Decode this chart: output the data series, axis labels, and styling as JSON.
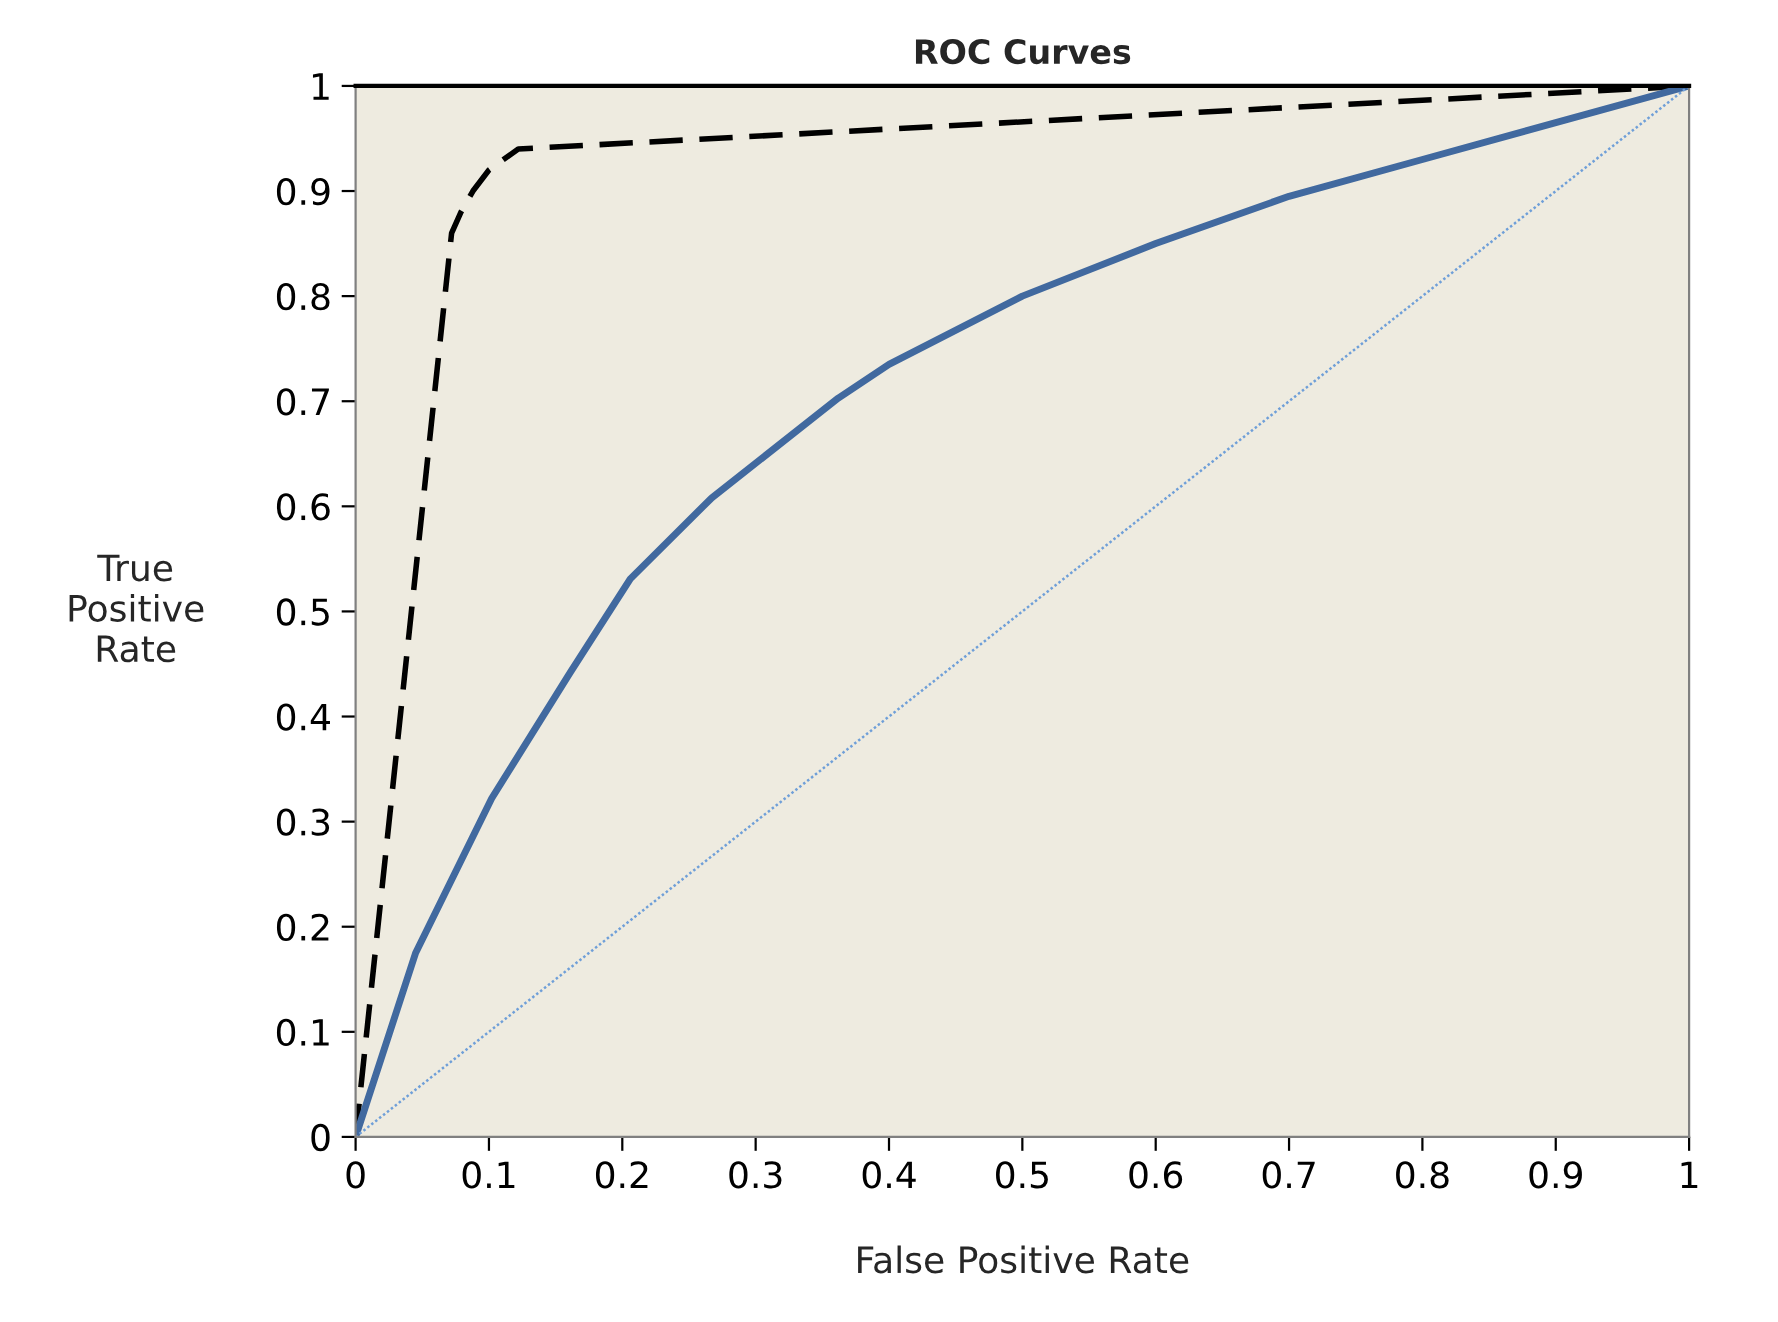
{
  "chart_data": {
    "type": "line",
    "title": "ROC Curves",
    "xlabel": "False Positive Rate",
    "ylabel": "True\nPositive\nRate",
    "xlim": [
      0,
      1
    ],
    "ylim": [
      0,
      1
    ],
    "xticks": [
      0,
      0.1,
      0.2,
      0.3,
      0.4,
      0.5,
      0.6,
      0.7,
      0.8,
      0.9,
      1
    ],
    "yticks": [
      0,
      0.1,
      0.2,
      0.3,
      0.4,
      0.5,
      0.6,
      0.7,
      0.8,
      0.9,
      1
    ],
    "grid": false,
    "legend": false,
    "marker": "none",
    "series": [
      {
        "color": "#000000",
        "line_style": "dashed",
        "x": [
          0,
          0.072,
          0.079,
          0.088,
          0.1,
          0.122,
          1
        ],
        "values": [
          0,
          0.86,
          0.88,
          0.9,
          0.92,
          0.94,
          1
        ]
      },
      {
        "color": "#41699f",
        "line_style": "solid",
        "x": [
          0,
          0.045,
          0.102,
          0.161,
          0.206,
          0.267,
          0.362,
          0.4,
          0.5,
          0.6,
          0.7,
          0.8,
          0.9,
          1
        ],
        "values": [
          0,
          0.175,
          0.322,
          0.442,
          0.531,
          0.608,
          0.703,
          0.735,
          0.8,
          0.85,
          0.895,
          0.93,
          0.965,
          1
        ]
      },
      {
        "color": "#6f9fd8",
        "line_style": "dotted",
        "x": [
          0,
          1
        ],
        "values": [
          0,
          1
        ]
      }
    ]
  }
}
